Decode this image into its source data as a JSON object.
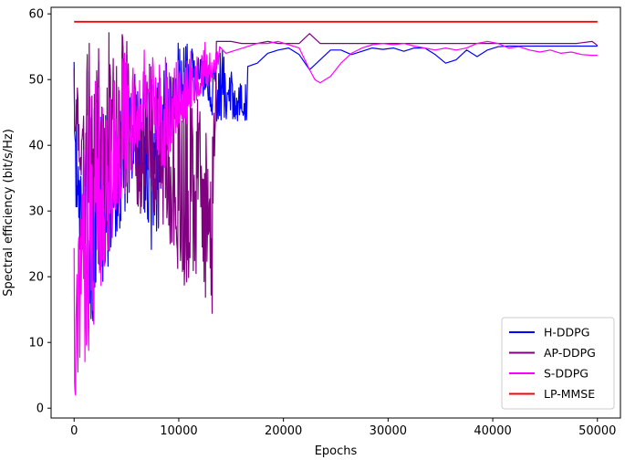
{
  "chart_data": {
    "type": "line",
    "xlabel": "Epochs",
    "ylabel": "Spectral efficiency (bit/s/Hz)",
    "xlim": [
      -2200,
      52200
    ],
    "ylim": [
      -1.5,
      61
    ],
    "xticks": [
      0,
      10000,
      20000,
      30000,
      40000,
      50000
    ],
    "yticks": [
      0,
      10,
      20,
      30,
      40,
      50,
      60
    ],
    "legend_position": "lower-right",
    "grid": false,
    "series": [
      {
        "name": "H-DDPG",
        "color": "#0000ff",
        "noisy_until": 16500,
        "envelope": [
          [
            0,
            30,
            53
          ],
          [
            1500,
            10,
            55
          ],
          [
            3000,
            20,
            57
          ],
          [
            4500,
            28,
            56
          ],
          [
            6000,
            35,
            55
          ],
          [
            7500,
            20,
            57
          ],
          [
            9000,
            40,
            57
          ],
          [
            10500,
            45,
            57
          ],
          [
            12000,
            48,
            56
          ],
          [
            13500,
            43.5,
            56
          ],
          [
            15000,
            43.5,
            53
          ],
          [
            16500,
            43.5,
            52
          ]
        ],
        "points": [
          [
            16600,
            52
          ],
          [
            17500,
            52.5
          ],
          [
            18500,
            54
          ],
          [
            19500,
            54.5
          ],
          [
            20500,
            54.8
          ],
          [
            21500,
            53.8
          ],
          [
            22500,
            51.5
          ],
          [
            23500,
            53
          ],
          [
            24500,
            54.5
          ],
          [
            25500,
            54.5
          ],
          [
            26500,
            53.8
          ],
          [
            27500,
            54.3
          ],
          [
            28500,
            54.8
          ],
          [
            29500,
            54.6
          ],
          [
            30500,
            54.8
          ],
          [
            31500,
            54.3
          ],
          [
            32500,
            54.8
          ],
          [
            33500,
            54.8
          ],
          [
            34500,
            53.8
          ],
          [
            35500,
            52.5
          ],
          [
            36500,
            53
          ],
          [
            37500,
            54.5
          ],
          [
            38500,
            53.5
          ],
          [
            39500,
            54.5
          ],
          [
            40500,
            55
          ],
          [
            41500,
            55.1
          ],
          [
            42500,
            55.1
          ],
          [
            43500,
            55.1
          ],
          [
            44500,
            55.1
          ],
          [
            45500,
            55.1
          ],
          [
            46500,
            55.1
          ],
          [
            47500,
            55.1
          ],
          [
            48500,
            55.1
          ],
          [
            49500,
            55.1
          ],
          [
            50000,
            55.1
          ]
        ]
      },
      {
        "name": "AP-DDPG",
        "color": "#800080",
        "noisy_until": 13500,
        "envelope": [
          [
            0,
            40,
            52
          ],
          [
            1500,
            30,
            58
          ],
          [
            3000,
            25,
            59
          ],
          [
            4500,
            35,
            59
          ],
          [
            6000,
            30,
            58
          ],
          [
            7500,
            28,
            57
          ],
          [
            9000,
            25,
            57
          ],
          [
            10500,
            18,
            56
          ],
          [
            12000,
            20,
            56
          ],
          [
            13200,
            13,
            56
          ],
          [
            13500,
            40,
            56
          ]
        ],
        "points": [
          [
            13600,
            55.8
          ],
          [
            15000,
            55.8
          ],
          [
            16000,
            55.5
          ],
          [
            17500,
            55.5
          ],
          [
            18500,
            55.8
          ],
          [
            19500,
            55.5
          ],
          [
            20500,
            55.5
          ],
          [
            21500,
            55.5
          ],
          [
            22500,
            57
          ],
          [
            23500,
            55.5
          ],
          [
            25000,
            55.5
          ],
          [
            30000,
            55.5
          ],
          [
            35000,
            55.5
          ],
          [
            40000,
            55.5
          ],
          [
            45000,
            55.5
          ],
          [
            48000,
            55.5
          ],
          [
            49500,
            55.8
          ],
          [
            50000,
            55.2
          ]
        ]
      },
      {
        "name": "S-DDPG",
        "color": "#ff00ff",
        "noisy_until": 13800,
        "envelope": [
          [
            0,
            1.5,
            25
          ],
          [
            400,
            1.5,
            40
          ],
          [
            900,
            4,
            50
          ],
          [
            1500,
            8,
            53
          ],
          [
            2500,
            18,
            55
          ],
          [
            3500,
            25,
            56
          ],
          [
            4500,
            30,
            56
          ],
          [
            5500,
            35,
            56
          ],
          [
            6500,
            42,
            56
          ],
          [
            7500,
            42,
            55
          ],
          [
            8500,
            35,
            55
          ],
          [
            9500,
            40,
            56
          ],
          [
            10500,
            42,
            56
          ],
          [
            11500,
            45,
            56
          ],
          [
            12500,
            48,
            56
          ],
          [
            13800,
            52,
            55
          ]
        ],
        "points": [
          [
            13900,
            55
          ],
          [
            14500,
            54
          ],
          [
            15500,
            54.5
          ],
          [
            16500,
            55
          ],
          [
            17500,
            55.5
          ],
          [
            18500,
            55.5
          ],
          [
            19500,
            55.8
          ],
          [
            20500,
            55.3
          ],
          [
            21500,
            54.8
          ],
          [
            22500,
            51.5
          ],
          [
            23000,
            50
          ],
          [
            23500,
            49.5
          ],
          [
            24500,
            50.5
          ],
          [
            25500,
            52.5
          ],
          [
            26500,
            54
          ],
          [
            27500,
            54.8
          ],
          [
            28500,
            55.3
          ],
          [
            29500,
            55.5
          ],
          [
            30500,
            55.3
          ],
          [
            31500,
            55.5
          ],
          [
            32500,
            55.1
          ],
          [
            33500,
            54.8
          ],
          [
            34500,
            54.5
          ],
          [
            35500,
            54.8
          ],
          [
            36500,
            54.5
          ],
          [
            37500,
            54.8
          ],
          [
            38500,
            55.5
          ],
          [
            39500,
            55.8
          ],
          [
            40500,
            55.5
          ],
          [
            41500,
            54.8
          ],
          [
            42500,
            55
          ],
          [
            43500,
            54.5
          ],
          [
            44500,
            54.2
          ],
          [
            45500,
            54.5
          ],
          [
            46500,
            54
          ],
          [
            47500,
            54.2
          ],
          [
            48500,
            53.8
          ],
          [
            49500,
            53.7
          ],
          [
            50000,
            53.7
          ]
        ]
      },
      {
        "name": "LP-MMSE",
        "color": "#ff0000",
        "points": [
          [
            0,
            58.8
          ],
          [
            50000,
            58.8
          ]
        ]
      }
    ]
  }
}
